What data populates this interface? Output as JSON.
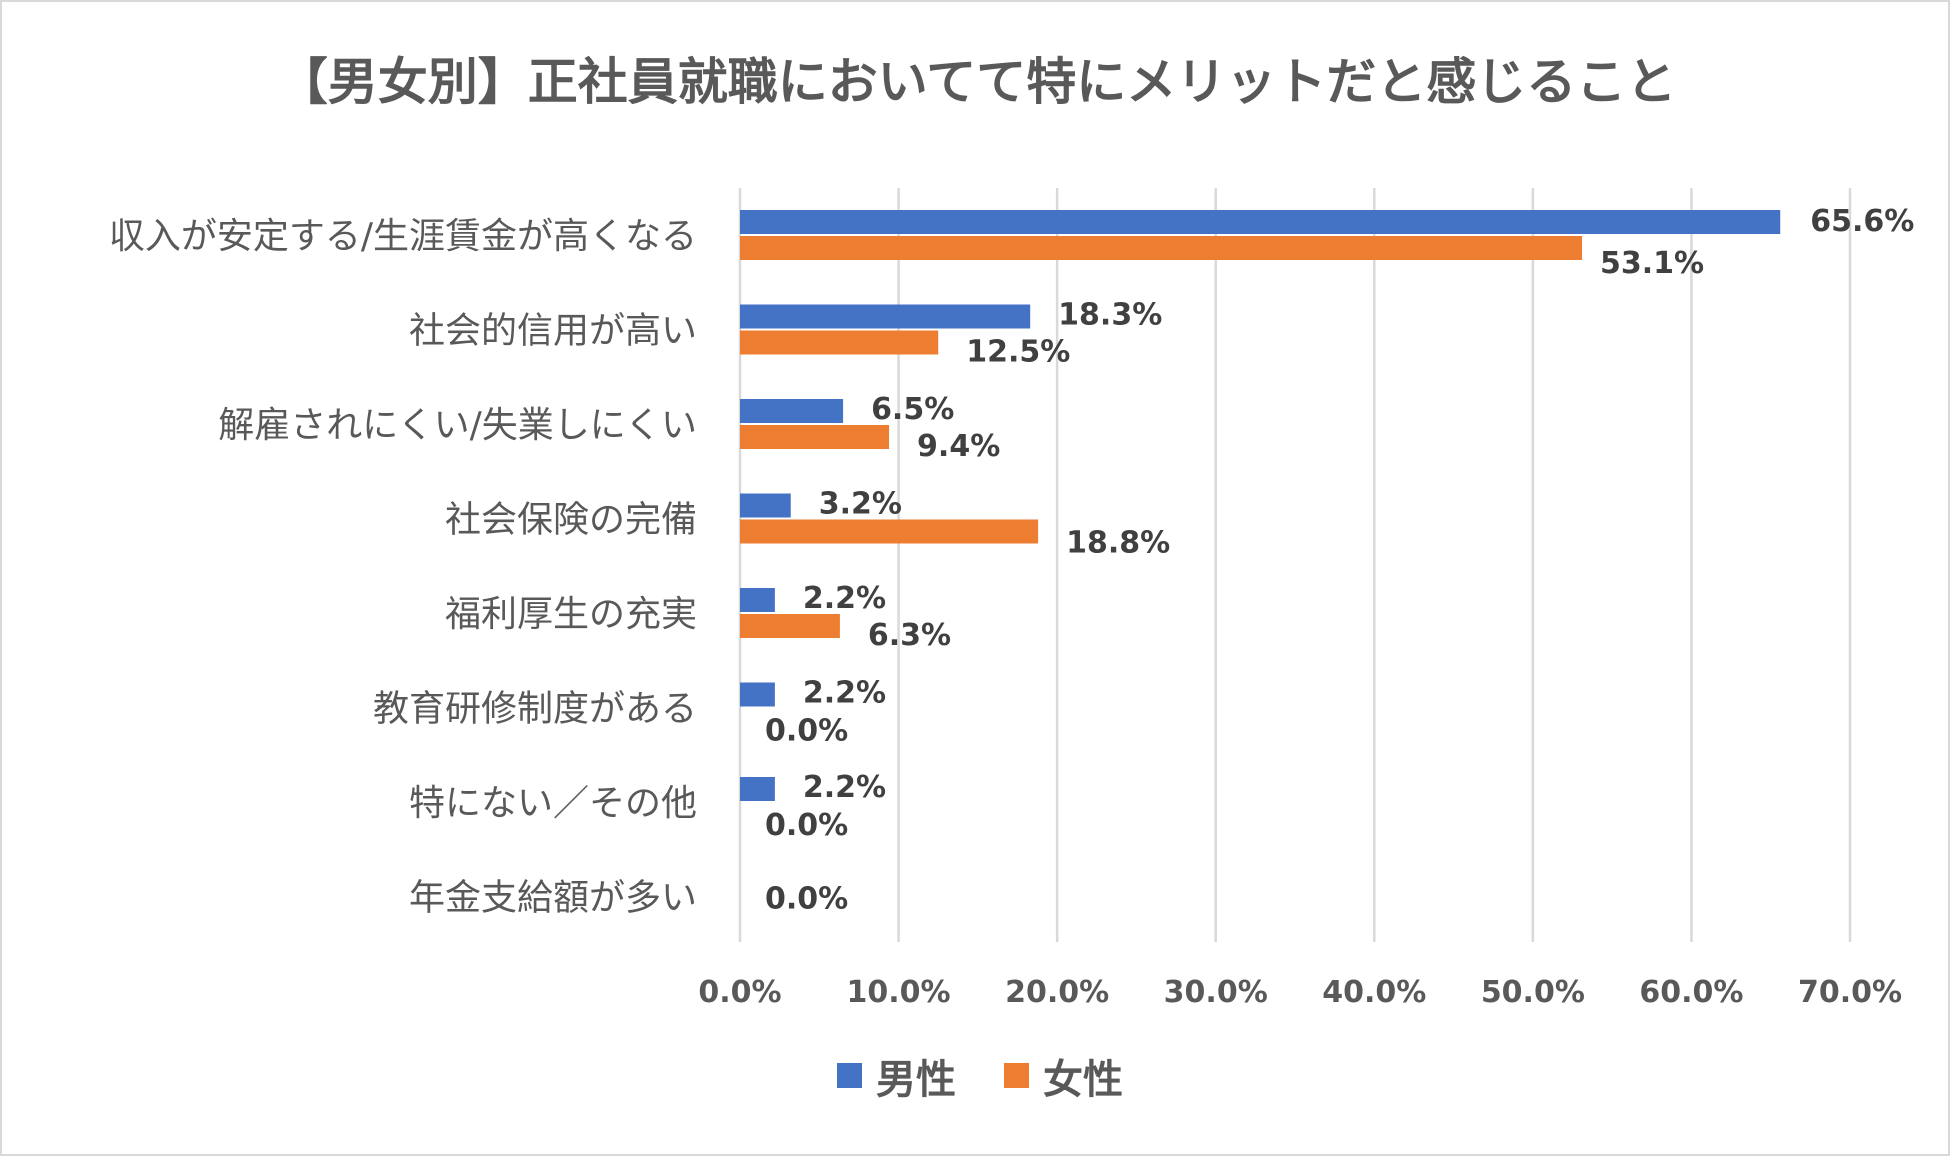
{
  "chart_data": {
    "type": "bar",
    "orientation": "horizontal",
    "title": "【男女別】正社員就職においてて特にメリットだと感じること",
    "categories": [
      "収入が安定する/生涯賃金が高くなる",
      "社会的信用が高い",
      "解雇されにくい/失業しにくい",
      "社会保険の完備",
      "福利厚生の充実",
      "教育研修制度がある",
      "特にない／その他",
      "年金支給額が多い"
    ],
    "series": [
      {
        "name": "男性",
        "color": "#4472c4",
        "values": [
          65.6,
          18.3,
          6.5,
          3.2,
          2.2,
          2.2,
          2.2,
          0.0
        ]
      },
      {
        "name": "女性",
        "color": "#ed7d31",
        "values": [
          53.1,
          12.5,
          9.4,
          18.8,
          6.3,
          0.0,
          0.0,
          0.0
        ]
      }
    ],
    "data_labels": [
      [
        "65.6%",
        "18.3%",
        "6.5%",
        "3.2%",
        "2.2%",
        "2.2%",
        "2.2%",
        "0.0%"
      ],
      [
        "53.1%",
        "12.5%",
        "9.4%",
        "18.8%",
        "6.3%",
        "0.0%",
        "0.0%",
        "0.0%"
      ]
    ],
    "xlim": [
      0,
      70
    ],
    "x_ticks": [
      0,
      10,
      20,
      30,
      40,
      50,
      60,
      70
    ],
    "x_tick_labels": [
      "0.0%",
      "10.0%",
      "20.0%",
      "30.0%",
      "40.0%",
      "50.0%",
      "60.0%",
      "70.0%"
    ],
    "grid": true,
    "legend_position": "bottom",
    "xlabel": "",
    "ylabel": ""
  }
}
